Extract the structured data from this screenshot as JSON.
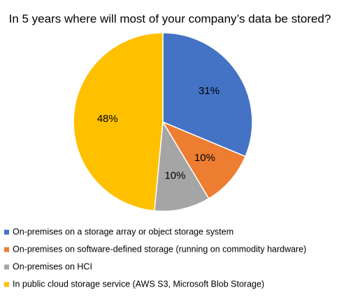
{
  "chart_data": {
    "type": "pie",
    "title": "In 5 years where will most of your company’s data be stored?",
    "categories": [
      "On-premises on a storage array or object storage system",
      "On-premises on software-defined storage (running on commodity hardware)",
      "On-premises on HCI",
      "In public cloud storage service (AWS S3, Microsoft Blob Storage)"
    ],
    "values": [
      31,
      10,
      10,
      48
    ],
    "value_labels": [
      "31%",
      "10%",
      "10%",
      "48%"
    ],
    "colors": [
      "#4472c4",
      "#ed7d31",
      "#a5a5a5",
      "#ffc000"
    ]
  }
}
